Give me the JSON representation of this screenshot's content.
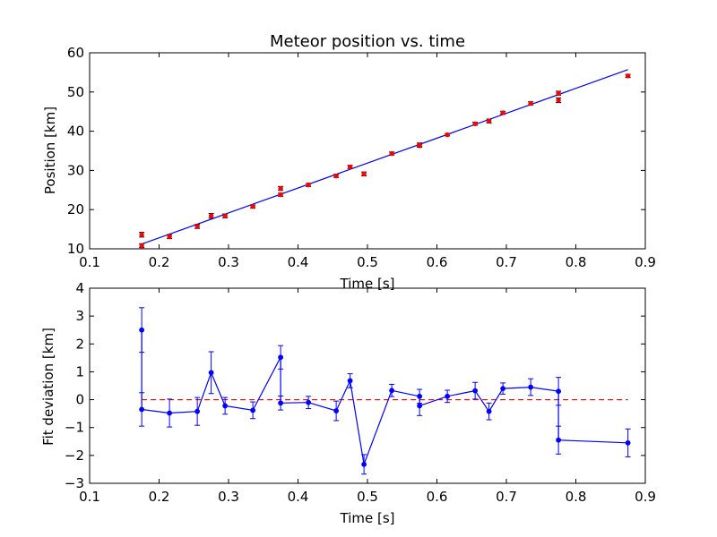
{
  "chart_data": [
    {
      "type": "scatter",
      "title": "Meteor position vs. time",
      "xlabel": "Time [s]",
      "ylabel": "Position [km]",
      "xlim": [
        0.1,
        0.9
      ],
      "ylim": [
        10,
        60
      ],
      "xticks": [
        "0.1",
        "0.2",
        "0.3",
        "0.4",
        "0.5",
        "0.6",
        "0.7",
        "0.8",
        "0.9"
      ],
      "yticks": [
        "10",
        "20",
        "30",
        "40",
        "50",
        "60"
      ],
      "grid": false,
      "colors": {
        "points": "#ff0000",
        "fit": "#0000ff"
      },
      "series": [
        {
          "kind": "points-errorbar",
          "x": [
            0.175,
            0.175,
            0.215,
            0.255,
            0.275,
            0.295,
            0.335,
            0.375,
            0.375,
            0.415,
            0.455,
            0.475,
            0.495,
            0.535,
            0.575,
            0.575,
            0.615,
            0.655,
            0.675,
            0.695,
            0.735,
            0.775,
            0.775,
            0.875
          ],
          "y": [
            10.8,
            13.6,
            13.1,
            15.7,
            18.4,
            18.4,
            20.8,
            23.8,
            25.4,
            26.3,
            28.6,
            30.9,
            29.1,
            34.3,
            36.3,
            36.5,
            39.1,
            41.9,
            42.6,
            44.7,
            47.1,
            47.9,
            49.7,
            54.1
          ],
          "err": [
            0.5,
            0.6,
            0.5,
            0.5,
            0.6,
            0.5,
            0.4,
            0.4,
            0.5,
            0.4,
            0.4,
            0.4,
            0.5,
            0.4,
            0.4,
            0.5,
            0.3,
            0.4,
            0.5,
            0.4,
            0.4,
            0.6,
            0.5,
            0.4
          ]
        },
        {
          "kind": "fit-line",
          "x": [
            0.175,
            0.875
          ],
          "y": [
            11.2,
            55.7
          ]
        }
      ]
    },
    {
      "type": "line",
      "title": "",
      "xlabel": "Time [s]",
      "ylabel": "Fit deviation [km]",
      "xlim": [
        0.1,
        0.9
      ],
      "ylim": [
        -3,
        4
      ],
      "xticks": [
        "0.1",
        "0.2",
        "0.3",
        "0.4",
        "0.5",
        "0.6",
        "0.7",
        "0.8",
        "0.9"
      ],
      "yticks": [
        "−3",
        "−2",
        "−1",
        "0",
        "1",
        "2",
        "3",
        "4"
      ],
      "grid": false,
      "reference_line": {
        "y": 0,
        "color": "#ff0000",
        "style": "dashed"
      },
      "colors": {
        "series": "#0000ff"
      },
      "series": [
        {
          "kind": "line-errorbar",
          "x": [
            0.175,
            0.175,
            0.215,
            0.255,
            0.275,
            0.295,
            0.335,
            0.375,
            0.375,
            0.415,
            0.455,
            0.475,
            0.495,
            0.535,
            0.575,
            0.575,
            0.615,
            0.655,
            0.675,
            0.695,
            0.735,
            0.775,
            0.775,
            0.875
          ],
          "y": [
            2.5,
            -0.35,
            -0.48,
            -0.42,
            0.97,
            -0.22,
            -0.38,
            1.52,
            -0.12,
            -0.1,
            -0.4,
            0.68,
            -2.32,
            0.33,
            0.12,
            -0.22,
            0.12,
            0.32,
            -0.42,
            0.4,
            0.45,
            0.3,
            -1.45,
            -1.55
          ],
          "err": [
            0.8,
            0.6,
            0.5,
            0.5,
            0.75,
            0.3,
            0.3,
            0.42,
            0.25,
            0.22,
            0.35,
            0.25,
            0.35,
            0.22,
            0.25,
            0.35,
            0.22,
            0.3,
            0.3,
            0.2,
            0.3,
            0.5,
            0.5,
            0.5
          ]
        }
      ]
    }
  ]
}
